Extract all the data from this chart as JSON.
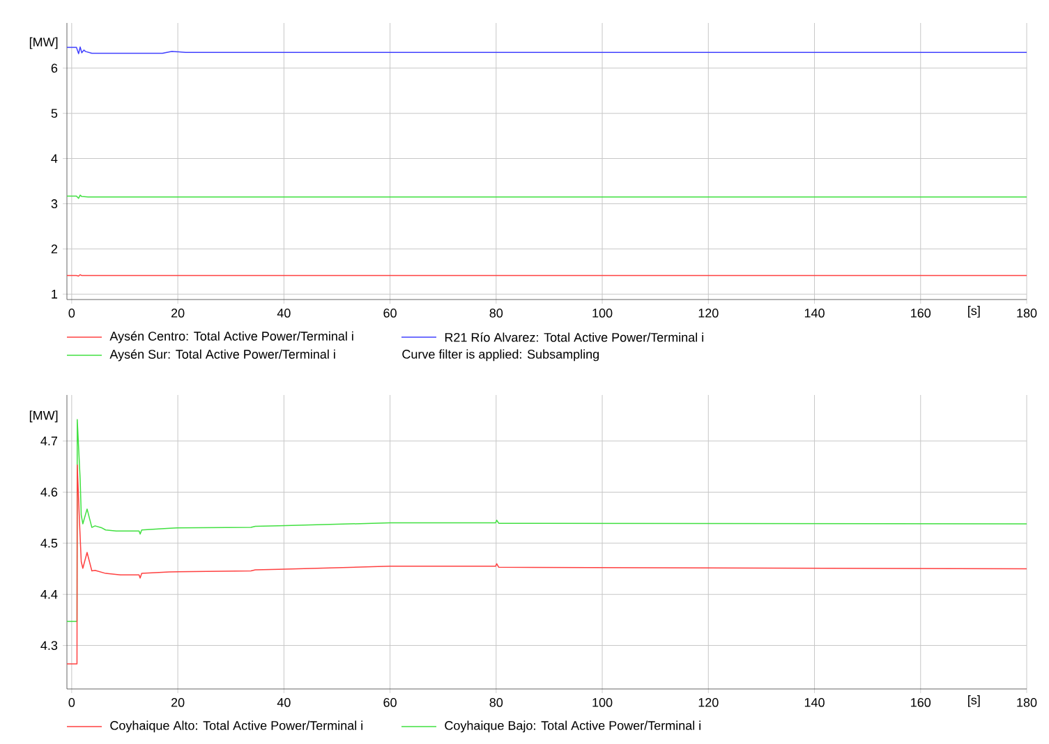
{
  "chart_data": [
    {
      "type": "line",
      "xlabel": "[s]",
      "ylabel": "[MW]",
      "xlim": [
        -0.9,
        180
      ],
      "ylim": [
        0.88,
        7.0
      ],
      "xticks": [
        0,
        20,
        40,
        60,
        80,
        100,
        120,
        140,
        160,
        180
      ],
      "yticks": [
        1,
        2,
        3,
        4,
        5,
        6
      ],
      "grid": true,
      "legend": "bottom",
      "marker": "none",
      "line_style": "solid",
      "annotations": [
        "Curve filter is applied: Subsampling"
      ],
      "series": [
        {
          "name": "Aysén Centro: Total Active Power/Terminal i",
          "color": "#ff4040",
          "x": [
            -0.9,
            0.9,
            1.3,
            1.6,
            1.9,
            3.1,
            180
          ],
          "values": [
            1.41,
            1.41,
            1.4,
            1.43,
            1.41,
            1.41,
            1.41
          ]
        },
        {
          "name": "Aysén Sur: Total Active Power/Terminal i",
          "color": "#40e040",
          "x": [
            -0.9,
            0.9,
            1.3,
            1.6,
            1.9,
            3.1,
            18.9,
            180
          ],
          "values": [
            3.17,
            3.17,
            3.12,
            3.19,
            3.16,
            3.15,
            3.15,
            3.15
          ]
        },
        {
          "name": "R21 Río Alvarez: Total Active Power/Terminal i",
          "color": "#4040ff",
          "x": [
            -0.9,
            0.9,
            1.3,
            1.6,
            1.9,
            2.3,
            2.6,
            3.8,
            17.1,
            18.9,
            21.5,
            180
          ],
          "values": [
            6.46,
            6.46,
            6.32,
            6.47,
            6.34,
            6.4,
            6.37,
            6.33,
            6.33,
            6.37,
            6.35,
            6.35
          ]
        }
      ]
    },
    {
      "type": "line",
      "xlabel": "[s]",
      "ylabel": "[MW]",
      "xlim": [
        -0.9,
        180
      ],
      "ylim": [
        4.215,
        4.79
      ],
      "xticks": [
        0,
        20,
        40,
        60,
        80,
        100,
        120,
        140,
        160,
        180
      ],
      "yticks": [
        4.3,
        4.4,
        4.5,
        4.6,
        4.7
      ],
      "grid": true,
      "legend": "bottom",
      "marker": "none",
      "line_style": "solid",
      "series": [
        {
          "name": "Coyhaique Alto: Total Active Power/Terminal i",
          "color": "#ff4040",
          "x": [
            -0.9,
            1.0,
            1.05,
            1.45,
            1.8,
            2.1,
            2.9,
            3.8,
            4.4,
            6.4,
            9.2,
            12.7,
            12.9,
            13.2,
            18.4,
            33.8,
            34.6,
            39,
            60,
            79.9,
            80.1,
            80.5,
            180
          ],
          "values": [
            4.264,
            4.264,
            4.653,
            4.547,
            4.464,
            4.451,
            4.482,
            4.446,
            4.447,
            4.441,
            4.438,
            4.438,
            4.432,
            4.441,
            4.444,
            4.446,
            4.448,
            4.449,
            4.455,
            4.455,
            4.46,
            4.453,
            4.45
          ]
        },
        {
          "name": "Coyhaique Bajo: Total Active Power/Terminal i",
          "color": "#40e040",
          "x": [
            -0.9,
            1.0,
            1.05,
            1.6,
            1.8,
            2.1,
            2.9,
            3.8,
            4.4,
            5.7,
            6.4,
            8.4,
            12.7,
            12.9,
            13.2,
            18.0,
            19.9,
            33.8,
            34.6,
            39,
            60,
            79.9,
            80.1,
            80.5,
            180
          ],
          "values": [
            4.347,
            4.347,
            4.742,
            4.624,
            4.555,
            4.538,
            4.567,
            4.531,
            4.534,
            4.53,
            4.526,
            4.524,
            4.524,
            4.518,
            4.526,
            4.529,
            4.53,
            4.531,
            4.533,
            4.534,
            4.54,
            4.54,
            4.545,
            4.539,
            4.538
          ]
        }
      ]
    }
  ]
}
